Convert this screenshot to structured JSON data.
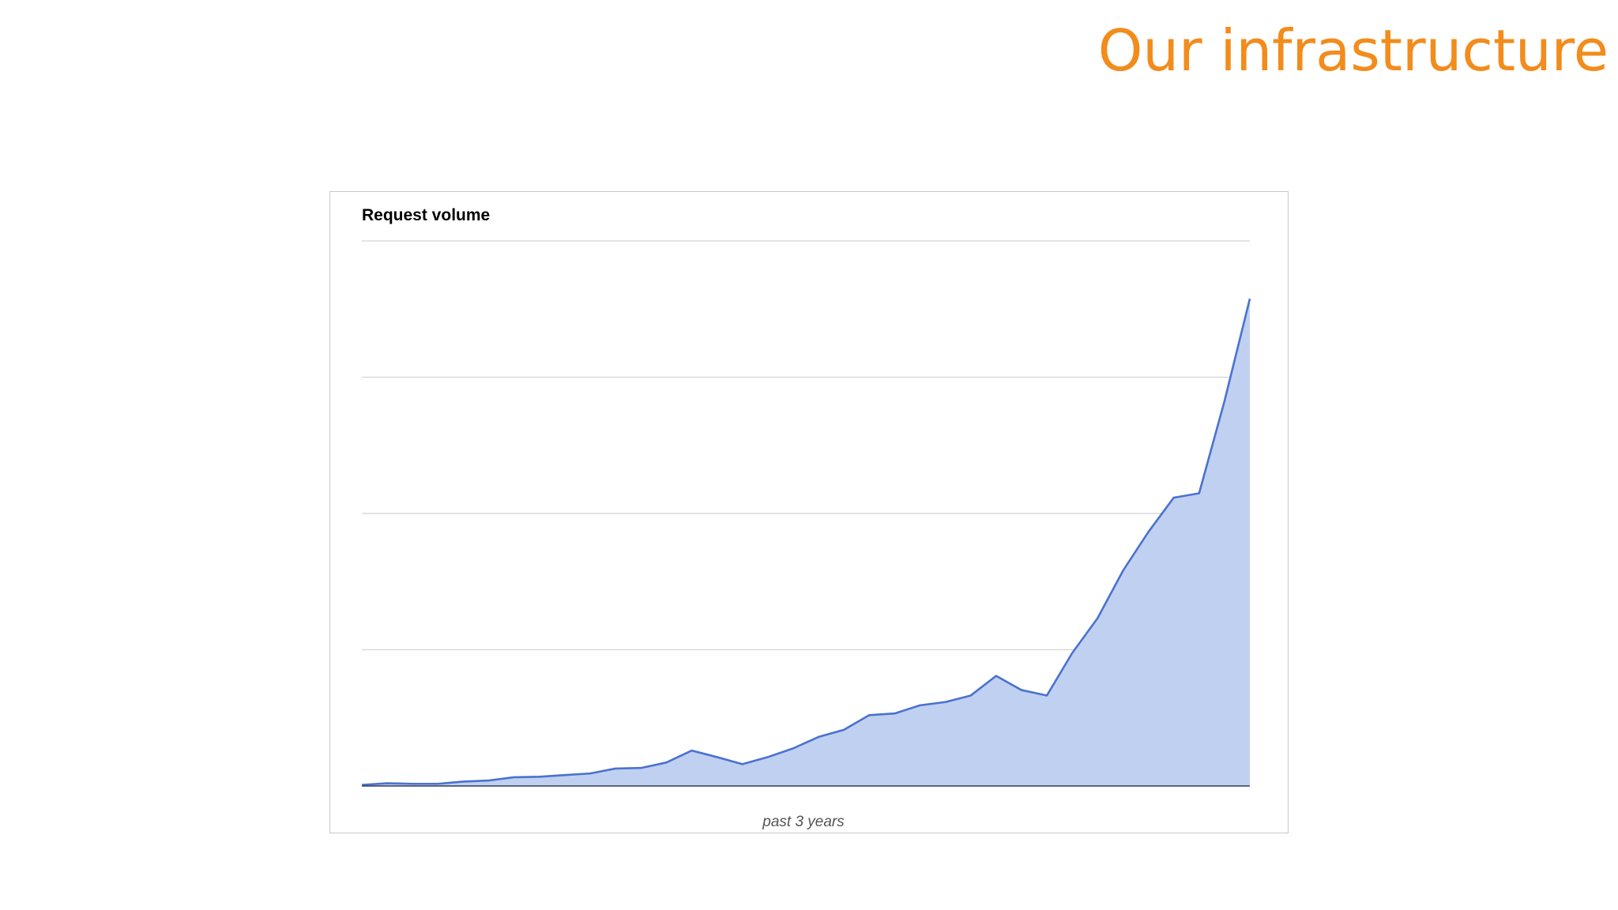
{
  "slide": {
    "title": "Our infrastructure"
  },
  "chart_data": {
    "type": "area",
    "title": "Request volume",
    "xlabel": "past 3 years",
    "ylabel": "",
    "ylim": [
      0,
      100
    ],
    "grid": true,
    "gridlines": [
      0,
      25,
      50,
      75,
      100
    ],
    "y_tick_labels_shown": false,
    "x_tick_labels_shown": false,
    "series_color": "#4a72cf",
    "fill_color": "#c0d0f0",
    "x": [
      0,
      1,
      2,
      3,
      4,
      5,
      6,
      7,
      8,
      9,
      10,
      11,
      12,
      13,
      14,
      15,
      16,
      17,
      18,
      19,
      20,
      21,
      22,
      23,
      24,
      25,
      26,
      27,
      28,
      29,
      30,
      31,
      32,
      33,
      34,
      35
    ],
    "values": [
      0.2,
      0.5,
      0.4,
      0.4,
      0.8,
      1.0,
      1.6,
      1.7,
      2.0,
      2.3,
      3.2,
      3.3,
      4.3,
      6.5,
      5.3,
      4.0,
      5.3,
      6.9,
      9.0,
      10.3,
      13.0,
      13.3,
      14.8,
      15.4,
      16.6,
      20.2,
      17.6,
      16.6,
      24.4,
      30.8,
      39.5,
      46.6,
      52.9,
      53.7,
      70.6,
      89.4
    ]
  }
}
